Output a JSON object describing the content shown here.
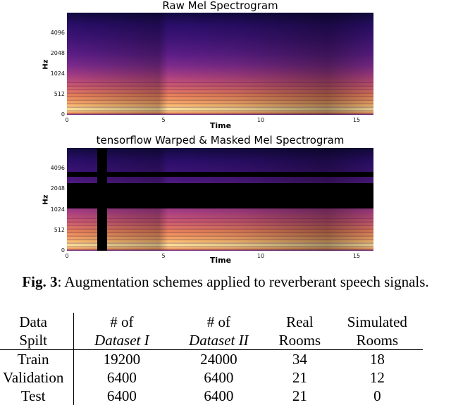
{
  "figure": {
    "panels": [
      {
        "title": "Raw Mel Spectrogram",
        "ylabel": "Hz",
        "xlabel": "Time",
        "yticks": [
          "4096",
          "2048",
          "1024",
          "512",
          "0"
        ],
        "xticks": [
          "0",
          "5",
          "10",
          "15"
        ]
      },
      {
        "title": "tensorflow Warped & Masked Mel Spectrogram",
        "ylabel": "Hz",
        "xlabel": "Time",
        "yticks": [
          "4096",
          "2048",
          "1024",
          "512",
          "0"
        ],
        "xticks": [
          "0",
          "5",
          "10",
          "15"
        ]
      }
    ],
    "caption_label": "Fig. 3",
    "caption_text": ":  Augmentation schemes applied to reverberant speech signals."
  },
  "table": {
    "header_row1": [
      "Data",
      "# of",
      "# of",
      "Real",
      "Simulated"
    ],
    "header_row2": [
      "Spilt",
      "Dataset I",
      "Dataset II",
      "Rooms",
      "Rooms"
    ],
    "rows": [
      [
        "Train",
        "19200",
        "24000",
        "34",
        "18"
      ],
      [
        "Validation",
        "6400",
        "6400",
        "21",
        "12"
      ],
      [
        "Test",
        "6400",
        "6400",
        "21",
        "0"
      ]
    ]
  }
}
